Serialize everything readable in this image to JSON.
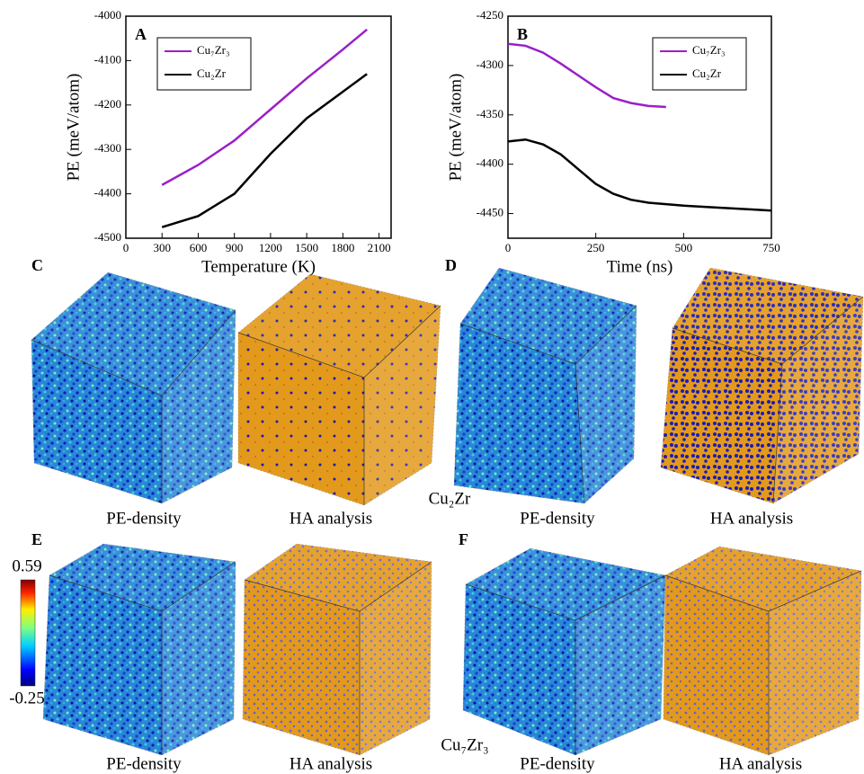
{
  "chart_data": [
    {
      "type": "line",
      "panel_label": "A",
      "x_label": "Temperature (K)",
      "y_label": "PE (meV/atom)",
      "xlim": [
        0,
        2200
      ],
      "xticks": [
        0,
        300,
        600,
        900,
        1200,
        1500,
        1800,
        2100
      ],
      "ylim": [
        -4500,
        -4000
      ],
      "yticks": [
        -4500,
        -4400,
        -4300,
        -4200,
        -4100,
        -4000
      ],
      "legend": "upper left",
      "series": [
        {
          "name": "Cu₇Zr₃",
          "color": "#9b1fc8",
          "x": [
            300,
            600,
            900,
            1200,
            1500,
            1800,
            2000
          ],
          "values": [
            -4380,
            -4335,
            -4280,
            -4210,
            -4140,
            -4075,
            -4030
          ]
        },
        {
          "name": "Cu₂Zr",
          "color": "#000000",
          "x": [
            300,
            600,
            900,
            1200,
            1500,
            1800,
            2000
          ],
          "values": [
            -4475,
            -4450,
            -4400,
            -4310,
            -4230,
            -4170,
            -4130
          ]
        }
      ]
    },
    {
      "type": "line",
      "panel_label": "B",
      "x_label": "Time (ns)",
      "y_label": "PE (meV/atom)",
      "xlim": [
        0,
        750
      ],
      "xticks": [
        0,
        250,
        500,
        750
      ],
      "ylim": [
        -4475,
        -4250
      ],
      "yticks": [
        -4450,
        -4400,
        -4350,
        -4300,
        -4250
      ],
      "legend": "upper right",
      "series": [
        {
          "name": "Cu₇Zr₃",
          "color": "#9b1fc8",
          "x": [
            0,
            50,
            100,
            150,
            200,
            250,
            300,
            350,
            400,
            450
          ],
          "values": [
            -4278,
            -4280,
            -4287,
            -4298,
            -4310,
            -4322,
            -4333,
            -4338,
            -4341,
            -4342
          ]
        },
        {
          "name": "Cu₂Zr",
          "color": "#000000",
          "x": [
            0,
            50,
            100,
            150,
            200,
            250,
            300,
            350,
            400,
            500,
            600,
            700,
            750
          ],
          "values": [
            -4377,
            -4375,
            -4380,
            -4390,
            -4405,
            -4420,
            -4430,
            -4436,
            -4439,
            -4442,
            -4444,
            -4446,
            -4447
          ]
        }
      ]
    }
  ],
  "panels": {
    "C": {
      "label": "C",
      "left": "PE-density",
      "right": "HA analysis"
    },
    "D": {
      "label": "D",
      "left": "PE-density",
      "right": "HA analysis"
    },
    "E": {
      "label": "E",
      "left": "PE-density",
      "right": "HA analysis"
    },
    "F": {
      "label": "F",
      "left": "PE-density",
      "right": "HA analysis"
    }
  },
  "row_labels": [
    "Cu₂Zr",
    "Cu₇Zr₃"
  ],
  "colorbar": {
    "max": 0.59,
    "min": -0.25
  }
}
